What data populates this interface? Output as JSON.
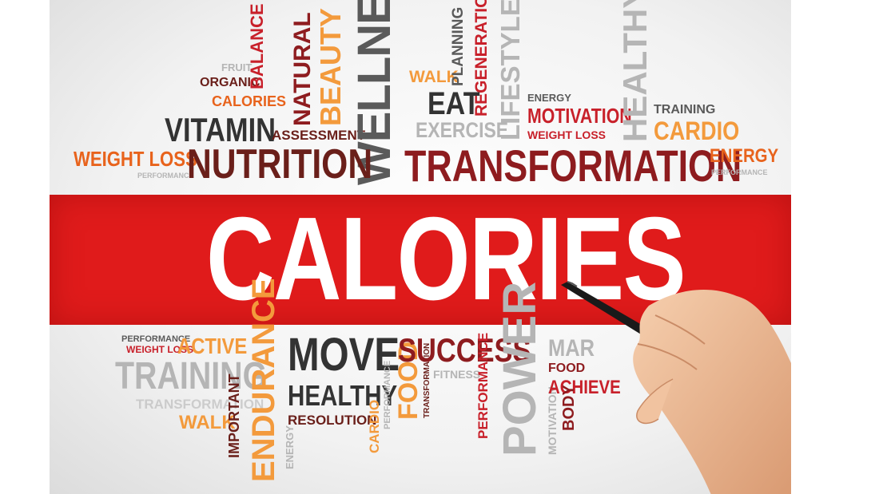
{
  "headline": "CALORIES",
  "words_top": {
    "fruit": "FRUIT",
    "organic": "ORGANIC",
    "balance": "BALANCE",
    "calories": "CALORIES",
    "vitamin": "VITAMIN",
    "natural": "NATURAL",
    "beauty": "BEAUTY",
    "assessment": "ASSESSMENT",
    "wellness": "WELLNESS",
    "weight_loss": "WEIGHT LOSS",
    "performance": "PERFORMANCE",
    "nutrition": "NUTRITION",
    "walk": "WALK",
    "planning": "PLANNING",
    "regeneration": "REGENERATION",
    "eat": "EAT",
    "exercise": "EXERCISE",
    "lifestyle": "LIFESTYLE",
    "energy_small": "ENERGY",
    "motivation": "MOTIVATION",
    "weight_loss_small": "WEIGHT LOSS",
    "healthy": "HEALTHY",
    "training": "TRAINING",
    "cardio": "CARDIO",
    "transformation": "TRANSFORMATION",
    "energy": "ENERGY",
    "performance_right": "PERFORMANCE"
  },
  "words_bottom": {
    "performance": "PERFORMANCE",
    "weight_loss": "WEIGHT LOSS",
    "active": "ACTIVE",
    "training": "TRAINING",
    "transformation": "TRANSFORMATION",
    "walk": "WALK",
    "important": "IMPORTANT",
    "endurance": "ENDURANCE",
    "energy": "ENERGY",
    "move": "MOVE",
    "healthy": "HEALTHY",
    "resolution": "RESOLUTION",
    "cardio": "CARDIO",
    "performance_v": "PERFORMANCE",
    "food": "FOOD",
    "transformation_v": "TRANSFORMATION",
    "fitness": "FITNESS",
    "success": "SUCCESS",
    "performance_v2": "PERFORMANCE",
    "power": "POWER",
    "motivation": "MOTIVATION",
    "mar": "MAR",
    "food_small": "FOOD",
    "achieve": "ACHIEVE",
    "body": "BODY"
  }
}
